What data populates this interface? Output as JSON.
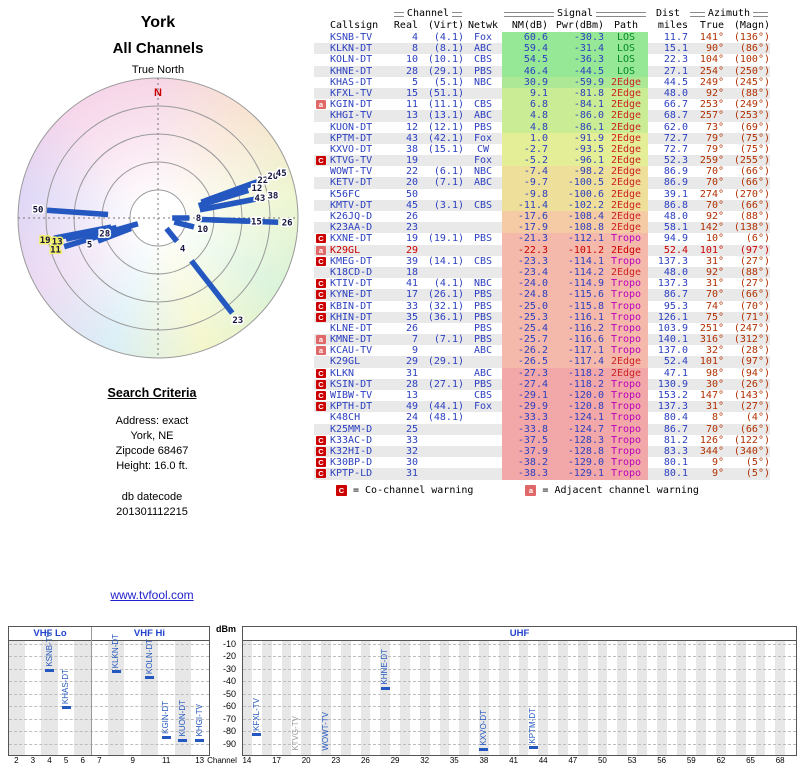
{
  "polar": {
    "title": "York",
    "subtitle": "All Channels",
    "north_label": "True North",
    "n_marker": "N"
  },
  "search": {
    "heading": "Search Criteria",
    "lines": [
      "Address: exact",
      "York, NE",
      "Zipcode 68467",
      "Height: 16.0 ft."
    ],
    "datecode_label": "db datecode",
    "datecode": "201301112215"
  },
  "link": {
    "text": "www.tvfool.com"
  },
  "table": {
    "group_headers": {
      "channel": "Channel",
      "signal": "Signal",
      "dist": "Dist",
      "azimuth": "Azimuth"
    },
    "columns": [
      "Callsign",
      "Real",
      "(Virt)",
      "Netwk",
      "NM(dB)",
      "Pwr(dBm)",
      "Path",
      "miles",
      "True",
      "(Magn)"
    ],
    "rows": [
      {
        "warn": "",
        "callsign": "KSNB-TV",
        "real": "4",
        "virt": "(4.1)",
        "net": "Fox",
        "nm": "60.6",
        "pwr": "-30.3",
        "path": "LOS",
        "miles": "11.7",
        "az_true": "141°",
        "az_magn": "(136°)",
        "flag": ""
      },
      {
        "warn": "",
        "callsign": "KLKN-DT",
        "real": "8",
        "virt": "(8.1)",
        "net": "ABC",
        "nm": "59.4",
        "pwr": "-31.4",
        "path": "LOS",
        "miles": "15.1",
        "az_true": "90°",
        "az_magn": "(86°)",
        "flag": ""
      },
      {
        "warn": "",
        "callsign": "KOLN-DT",
        "real": "10",
        "virt": "(10.1)",
        "net": "CBS",
        "nm": "54.5",
        "pwr": "-36.3",
        "path": "LOS",
        "miles": "22.3",
        "az_true": "104°",
        "az_magn": "(100°)",
        "flag": ""
      },
      {
        "warn": "",
        "callsign": "KHNE-DT",
        "real": "28",
        "virt": "(29.1)",
        "net": "PBS",
        "nm": "46.4",
        "pwr": "-44.5",
        "path": "LOS",
        "miles": "27.1",
        "az_true": "254°",
        "az_magn": "(250°)",
        "flag": ""
      },
      {
        "warn": "",
        "callsign": "KHAS-DT",
        "real": "5",
        "virt": "(5.1)",
        "net": "NBC",
        "nm": "30.9",
        "pwr": "-59.9",
        "path": "2Edge",
        "miles": "44.5",
        "az_true": "249°",
        "az_magn": "(245°)",
        "flag": ""
      },
      {
        "warn": "",
        "callsign": "KFXL-TV",
        "real": "15",
        "virt": "(51.1)",
        "net": "",
        "nm": "9.1",
        "pwr": "-81.8",
        "path": "2Edge",
        "miles": "48.0",
        "az_true": "92°",
        "az_magn": "(88°)",
        "flag": ""
      },
      {
        "warn": "a",
        "callsign": "KGIN-DT",
        "real": "11",
        "virt": "(11.1)",
        "net": "CBS",
        "nm": "6.8",
        "pwr": "-84.1",
        "path": "2Edge",
        "miles": "66.7",
        "az_true": "253°",
        "az_magn": "(249°)",
        "flag": ""
      },
      {
        "warn": "",
        "callsign": "KHGI-TV",
        "real": "13",
        "virt": "(13.1)",
        "net": "ABC",
        "nm": "4.8",
        "pwr": "-86.0",
        "path": "2Edge",
        "miles": "68.7",
        "az_true": "257°",
        "az_magn": "(253°)",
        "flag": ""
      },
      {
        "warn": "",
        "callsign": "KUON-DT",
        "real": "12",
        "virt": "(12.1)",
        "net": "PBS",
        "nm": "4.8",
        "pwr": "-86.1",
        "path": "2Edge",
        "miles": "62.0",
        "az_true": "73°",
        "az_magn": "(69°)",
        "flag": ""
      },
      {
        "warn": "",
        "callsign": "KPTM-DT",
        "real": "43",
        "virt": "(42.1)",
        "net": "Fox",
        "nm": "1.0",
        "pwr": "-91.9",
        "path": "2Edge",
        "miles": "72.7",
        "az_true": "79°",
        "az_magn": "(75°)",
        "flag": ""
      },
      {
        "warn": "",
        "callsign": "KXVO-DT",
        "real": "38",
        "virt": "(15.1)",
        "net": "CW",
        "nm": "-2.7",
        "pwr": "-93.5",
        "path": "2Edge",
        "miles": "72.7",
        "az_true": "79°",
        "az_magn": "(75°)",
        "flag": ""
      },
      {
        "warn": "C",
        "callsign": "KTVG-TV",
        "real": "19",
        "virt": "",
        "net": "Fox",
        "nm": "-5.2",
        "pwr": "-96.1",
        "path": "2Edge",
        "miles": "52.3",
        "az_true": "259°",
        "az_magn": "(255°)",
        "flag": ""
      },
      {
        "warn": "",
        "callsign": "WOWT-TV",
        "real": "22",
        "virt": "(6.1)",
        "net": "NBC",
        "nm": "-7.4",
        "pwr": "-98.2",
        "path": "2Edge",
        "miles": "86.9",
        "az_true": "70°",
        "az_magn": "(66°)",
        "flag": ""
      },
      {
        "warn": "",
        "callsign": "KETV-DT",
        "real": "20",
        "virt": "(7.1)",
        "net": "ABC",
        "nm": "-9.7",
        "pwr": "-100.5",
        "path": "2Edge",
        "miles": "86.9",
        "az_true": "70°",
        "az_magn": "(66°)",
        "flag": ""
      },
      {
        "warn": "",
        "callsign": "K56FC",
        "real": "50",
        "virt": "",
        "net": "",
        "nm": "-9.8",
        "pwr": "-100.6",
        "path": "2Edge",
        "miles": "39.1",
        "az_true": "274°",
        "az_magn": "(270°)",
        "flag": ""
      },
      {
        "warn": "",
        "callsign": "KMTV-DT",
        "real": "45",
        "virt": "(3.1)",
        "net": "CBS",
        "nm": "-11.4",
        "pwr": "-102.2",
        "path": "2Edge",
        "miles": "86.8",
        "az_true": "70°",
        "az_magn": "(66°)",
        "flag": ""
      },
      {
        "warn": "",
        "callsign": "K26JQ-D",
        "real": "26",
        "virt": "",
        "net": "",
        "nm": "-17.6",
        "pwr": "-108.4",
        "path": "2Edge",
        "miles": "48.0",
        "az_true": "92°",
        "az_magn": "(88°)",
        "flag": ""
      },
      {
        "warn": "",
        "callsign": "K23AA-D",
        "real": "23",
        "virt": "",
        "net": "",
        "nm": "-17.9",
        "pwr": "-108.8",
        "path": "2Edge",
        "miles": "58.1",
        "az_true": "142°",
        "az_magn": "(138°)",
        "flag": ""
      },
      {
        "warn": "C",
        "callsign": "KXNE-DT",
        "real": "19",
        "virt": "(19.1)",
        "net": "PBS",
        "nm": "-21.3",
        "pwr": "-112.1",
        "path": "Tropo",
        "miles": "94.9",
        "az_true": "10°",
        "az_magn": "(6°)",
        "flag": ""
      },
      {
        "warn": "a",
        "callsign": "K29GL",
        "real": "29",
        "virt": "",
        "net": "",
        "nm": "-22.3",
        "pwr": "-101.2",
        "path": "2Edge",
        "miles": "52.4",
        "az_true": "101°",
        "az_magn": "(97°)",
        "flag": "red"
      },
      {
        "warn": "C",
        "callsign": "KMEG-DT",
        "real": "39",
        "virt": "(14.1)",
        "net": "CBS",
        "nm": "-23.3",
        "pwr": "-114.1",
        "path": "Tropo",
        "miles": "137.3",
        "az_true": "31°",
        "az_magn": "(27°)",
        "flag": ""
      },
      {
        "warn": "",
        "callsign": "K18CD-D",
        "real": "18",
        "virt": "",
        "net": "",
        "nm": "-23.4",
        "pwr": "-114.2",
        "path": "2Edge",
        "miles": "48.0",
        "az_true": "92°",
        "az_magn": "(88°)",
        "flag": ""
      },
      {
        "warn": "C",
        "callsign": "KTIV-DT",
        "real": "41",
        "virt": "(4.1)",
        "net": "NBC",
        "nm": "-24.0",
        "pwr": "-114.9",
        "path": "Tropo",
        "miles": "137.3",
        "az_true": "31°",
        "az_magn": "(27°)",
        "flag": ""
      },
      {
        "warn": "C",
        "callsign": "KYNE-DT",
        "real": "17",
        "virt": "(26.1)",
        "net": "PBS",
        "nm": "-24.8",
        "pwr": "-115.6",
        "path": "Tropo",
        "miles": "86.7",
        "az_true": "70°",
        "az_magn": "(66°)",
        "flag": ""
      },
      {
        "warn": "C",
        "callsign": "KBIN-DT",
        "real": "33",
        "virt": "(32.1)",
        "net": "PBS",
        "nm": "-25.0",
        "pwr": "-115.8",
        "path": "Tropo",
        "miles": "95.3",
        "az_true": "74°",
        "az_magn": "(70°)",
        "flag": ""
      },
      {
        "warn": "C",
        "callsign": "KHIN-DT",
        "real": "35",
        "virt": "(36.1)",
        "net": "PBS",
        "nm": "-25.3",
        "pwr": "-116.1",
        "path": "Tropo",
        "miles": "126.1",
        "az_true": "75°",
        "az_magn": "(71°)",
        "flag": ""
      },
      {
        "warn": "",
        "callsign": "KLNE-DT",
        "real": "26",
        "virt": "",
        "net": "PBS",
        "nm": "-25.4",
        "pwr": "-116.2",
        "path": "Tropo",
        "miles": "103.9",
        "az_true": "251°",
        "az_magn": "(247°)",
        "flag": ""
      },
      {
        "warn": "a",
        "callsign": "KMNE-DT",
        "real": "7",
        "virt": "(7.1)",
        "net": "PBS",
        "nm": "-25.7",
        "pwr": "-116.6",
        "path": "Tropo",
        "miles": "140.1",
        "az_true": "316°",
        "az_magn": "(312°)",
        "flag": ""
      },
      {
        "warn": "a",
        "callsign": "KCAU-TV",
        "real": "9",
        "virt": "",
        "net": "ABC",
        "nm": "-26.2",
        "pwr": "-117.1",
        "path": "Tropo",
        "miles": "137.0",
        "az_true": "32°",
        "az_magn": "(28°)",
        "flag": ""
      },
      {
        "warn": "",
        "callsign": "K29GL",
        "real": "29",
        "virt": "(29.1)",
        "net": "",
        "nm": "-26.5",
        "pwr": "-117.4",
        "path": "2Edge",
        "miles": "52.4",
        "az_true": "101°",
        "az_magn": "(97°)",
        "flag": ""
      },
      {
        "warn": "C",
        "callsign": "KLKN",
        "real": "31",
        "virt": "",
        "net": "ABC",
        "nm": "-27.3",
        "pwr": "-118.2",
        "path": "2Edge",
        "miles": "47.1",
        "az_true": "98°",
        "az_magn": "(94°)",
        "flag": ""
      },
      {
        "warn": "C",
        "callsign": "KSIN-DT",
        "real": "28",
        "virt": "(27.1)",
        "net": "PBS",
        "nm": "-27.4",
        "pwr": "-118.2",
        "path": "Tropo",
        "miles": "130.9",
        "az_true": "30°",
        "az_magn": "(26°)",
        "flag": ""
      },
      {
        "warn": "C",
        "callsign": "WIBW-TV",
        "real": "13",
        "virt": "",
        "net": "CBS",
        "nm": "-29.1",
        "pwr": "-120.0",
        "path": "Tropo",
        "miles": "153.2",
        "az_true": "147°",
        "az_magn": "(143°)",
        "flag": ""
      },
      {
        "warn": "C",
        "callsign": "KPTH-DT",
        "real": "49",
        "virt": "(44.1)",
        "net": "Fox",
        "nm": "-29.9",
        "pwr": "-120.8",
        "path": "Tropo",
        "miles": "137.3",
        "az_true": "31°",
        "az_magn": "(27°)",
        "flag": ""
      },
      {
        "warn": "",
        "callsign": "K48CH",
        "real": "24",
        "virt": "(48.1)",
        "net": "",
        "nm": "-33.3",
        "pwr": "-124.1",
        "path": "Tropo",
        "miles": "80.4",
        "az_true": "8°",
        "az_magn": "(4°)",
        "flag": ""
      },
      {
        "warn": "",
        "callsign": "K25MM-D",
        "real": "25",
        "virt": "",
        "net": "",
        "nm": "-33.8",
        "pwr": "-124.7",
        "path": "Tropo",
        "miles": "86.7",
        "az_true": "70°",
        "az_magn": "(66°)",
        "flag": ""
      },
      {
        "warn": "C",
        "callsign": "K33AC-D",
        "real": "33",
        "virt": "",
        "net": "",
        "nm": "-37.5",
        "pwr": "-128.3",
        "path": "Tropo",
        "miles": "81.2",
        "az_true": "126°",
        "az_magn": "(122°)",
        "flag": ""
      },
      {
        "warn": "C",
        "callsign": "K32HI-D",
        "real": "32",
        "virt": "",
        "net": "",
        "nm": "-37.9",
        "pwr": "-128.8",
        "path": "Tropo",
        "miles": "83.3",
        "az_true": "344°",
        "az_magn": "(340°)",
        "flag": ""
      },
      {
        "warn": "C",
        "callsign": "K30BP-D",
        "real": "30",
        "virt": "",
        "net": "",
        "nm": "-38.2",
        "pwr": "-129.0",
        "path": "Tropo",
        "miles": "80.1",
        "az_true": "9°",
        "az_magn": "(5°)",
        "flag": ""
      },
      {
        "warn": "C",
        "callsign": "KPTP-LD",
        "real": "31",
        "virt": "",
        "net": "",
        "nm": "-38.3",
        "pwr": "-129.1",
        "path": "Tropo",
        "miles": "80.1",
        "az_true": "9°",
        "az_magn": "(5°)",
        "flag": ""
      }
    ],
    "legend": {
      "c_symbol": "C",
      "c_text": "= Co-channel warning",
      "a_symbol": "a",
      "a_text": "= Adjacent channel warning"
    }
  },
  "chart_data": [
    {
      "type": "scatter",
      "polar": true,
      "title": "York - All Channels",
      "angular_axis": "true azimuth (degrees)",
      "radial_axis": "signal strength NM(dB), stronger toward center",
      "points": [
        {
          "channel_label": "4",
          "azimuth_true": 141,
          "nm_db": 60.6,
          "highlight": false
        },
        {
          "channel_label": "8",
          "azimuth_true": 90,
          "nm_db": 59.4,
          "highlight": false
        },
        {
          "channel_label": "10",
          "azimuth_true": 104,
          "nm_db": 54.5,
          "highlight": false
        },
        {
          "channel_label": "28",
          "azimuth_true": 254,
          "nm_db": 46.4,
          "highlight": false
        },
        {
          "channel_label": "5",
          "azimuth_true": 249,
          "nm_db": 30.9,
          "highlight": false
        },
        {
          "channel_label": "15",
          "azimuth_true": 92,
          "nm_db": 9.1,
          "highlight": false
        },
        {
          "channel_label": "11",
          "azimuth_true": 253,
          "nm_db": 6.8,
          "highlight": true
        },
        {
          "channel_label": "13",
          "azimuth_true": 257,
          "nm_db": 4.8,
          "highlight": true
        },
        {
          "channel_label": "12",
          "azimuth_true": 73,
          "nm_db": 4.8,
          "highlight": false
        },
        {
          "channel_label": "43",
          "azimuth_true": 79,
          "nm_db": 1.0,
          "highlight": false
        },
        {
          "channel_label": "38",
          "azimuth_true": 79,
          "nm_db": -2.7,
          "highlight": false
        },
        {
          "channel_label": "19",
          "azimuth_true": 259,
          "nm_db": -5.2,
          "highlight": true
        },
        {
          "channel_label": "22",
          "azimuth_true": 70,
          "nm_db": -7.4,
          "highlight": false
        },
        {
          "channel_label": "20",
          "azimuth_true": 70,
          "nm_db": -9.7,
          "highlight": false
        },
        {
          "channel_label": "50",
          "azimuth_true": 274,
          "nm_db": -9.8,
          "highlight": false
        },
        {
          "channel_label": "45",
          "azimuth_true": 70,
          "nm_db": -11.4,
          "highlight": false
        },
        {
          "channel_label": "26",
          "azimuth_true": 92,
          "nm_db": -17.6,
          "highlight": false
        },
        {
          "channel_label": "23",
          "azimuth_true": 142,
          "nm_db": -17.9,
          "highlight": false
        }
      ]
    },
    {
      "type": "bar",
      "ylabel": "dBm",
      "xlabel": "Channel",
      "ylim": [
        -100,
        0
      ],
      "yticks": [
        -10,
        -20,
        -30,
        -40,
        -50,
        -60,
        -70,
        -80,
        -90
      ],
      "bands": [
        {
          "label": "VHF Lo",
          "channels": [
            2,
            6
          ]
        },
        {
          "label": "VHF Hi",
          "channels": [
            7,
            13
          ]
        },
        {
          "label": "UHF",
          "channels": [
            14,
            69
          ]
        }
      ],
      "xticks_vhf": [
        2,
        3,
        4,
        5,
        6,
        7,
        9,
        11,
        13
      ],
      "xticks_uhf": [
        14,
        17,
        20,
        23,
        26,
        29,
        32,
        35,
        38,
        41,
        44,
        47,
        50,
        53,
        56,
        59,
        62,
        65,
        68
      ],
      "points": [
        {
          "station": "KSNB-TV",
          "channel": 4,
          "dbm": -30.3,
          "band": "VHF Lo",
          "dimmed": false
        },
        {
          "station": "KHAS-DT",
          "channel": 5,
          "dbm": -59.9,
          "band": "VHF Lo",
          "dimmed": false
        },
        {
          "station": "KLKN-DT",
          "channel": 8,
          "dbm": -31.4,
          "band": "VHF Hi",
          "dimmed": false
        },
        {
          "station": "KOLN-DT",
          "channel": 10,
          "dbm": -36.3,
          "band": "VHF Hi",
          "dimmed": false
        },
        {
          "station": "KGIN-DT",
          "channel": 11,
          "dbm": -84.1,
          "band": "VHF Hi",
          "dimmed": false
        },
        {
          "station": "KUON-DT",
          "channel": 12,
          "dbm": -86.1,
          "band": "VHF Hi",
          "dimmed": false
        },
        {
          "station": "KHGI-TV",
          "channel": 13,
          "dbm": -86.0,
          "band": "VHF Hi",
          "dimmed": false
        },
        {
          "station": "KFXL-TV",
          "channel": 15,
          "dbm": -81.8,
          "band": "UHF",
          "dimmed": false
        },
        {
          "station": "KTVG-TV",
          "channel": 19,
          "dbm": -96.1,
          "band": "UHF",
          "dimmed": true
        },
        {
          "station": "WOWT-TV",
          "channel": 22,
          "dbm": -98.2,
          "band": "UHF",
          "dimmed": false
        },
        {
          "station": "KHNE-DT",
          "channel": 28,
          "dbm": -44.5,
          "band": "UHF",
          "dimmed": false
        },
        {
          "station": "KXVO-DT",
          "channel": 38,
          "dbm": -93.5,
          "band": "UHF",
          "dimmed": false
        },
        {
          "station": "KPTM-DT",
          "channel": 43,
          "dbm": -91.9,
          "band": "UHF",
          "dimmed": false
        }
      ]
    }
  ],
  "colors": {
    "bar_blue": "#2458c0",
    "table_blue": "#2b3fbf",
    "azimuth_red": "#b03000",
    "los_green": "#008822",
    "edge_red": "#cc2222",
    "tropo_magenta": "#bb00bb",
    "warn_red": "#cc0000",
    "warn_pink": "#e06868"
  }
}
